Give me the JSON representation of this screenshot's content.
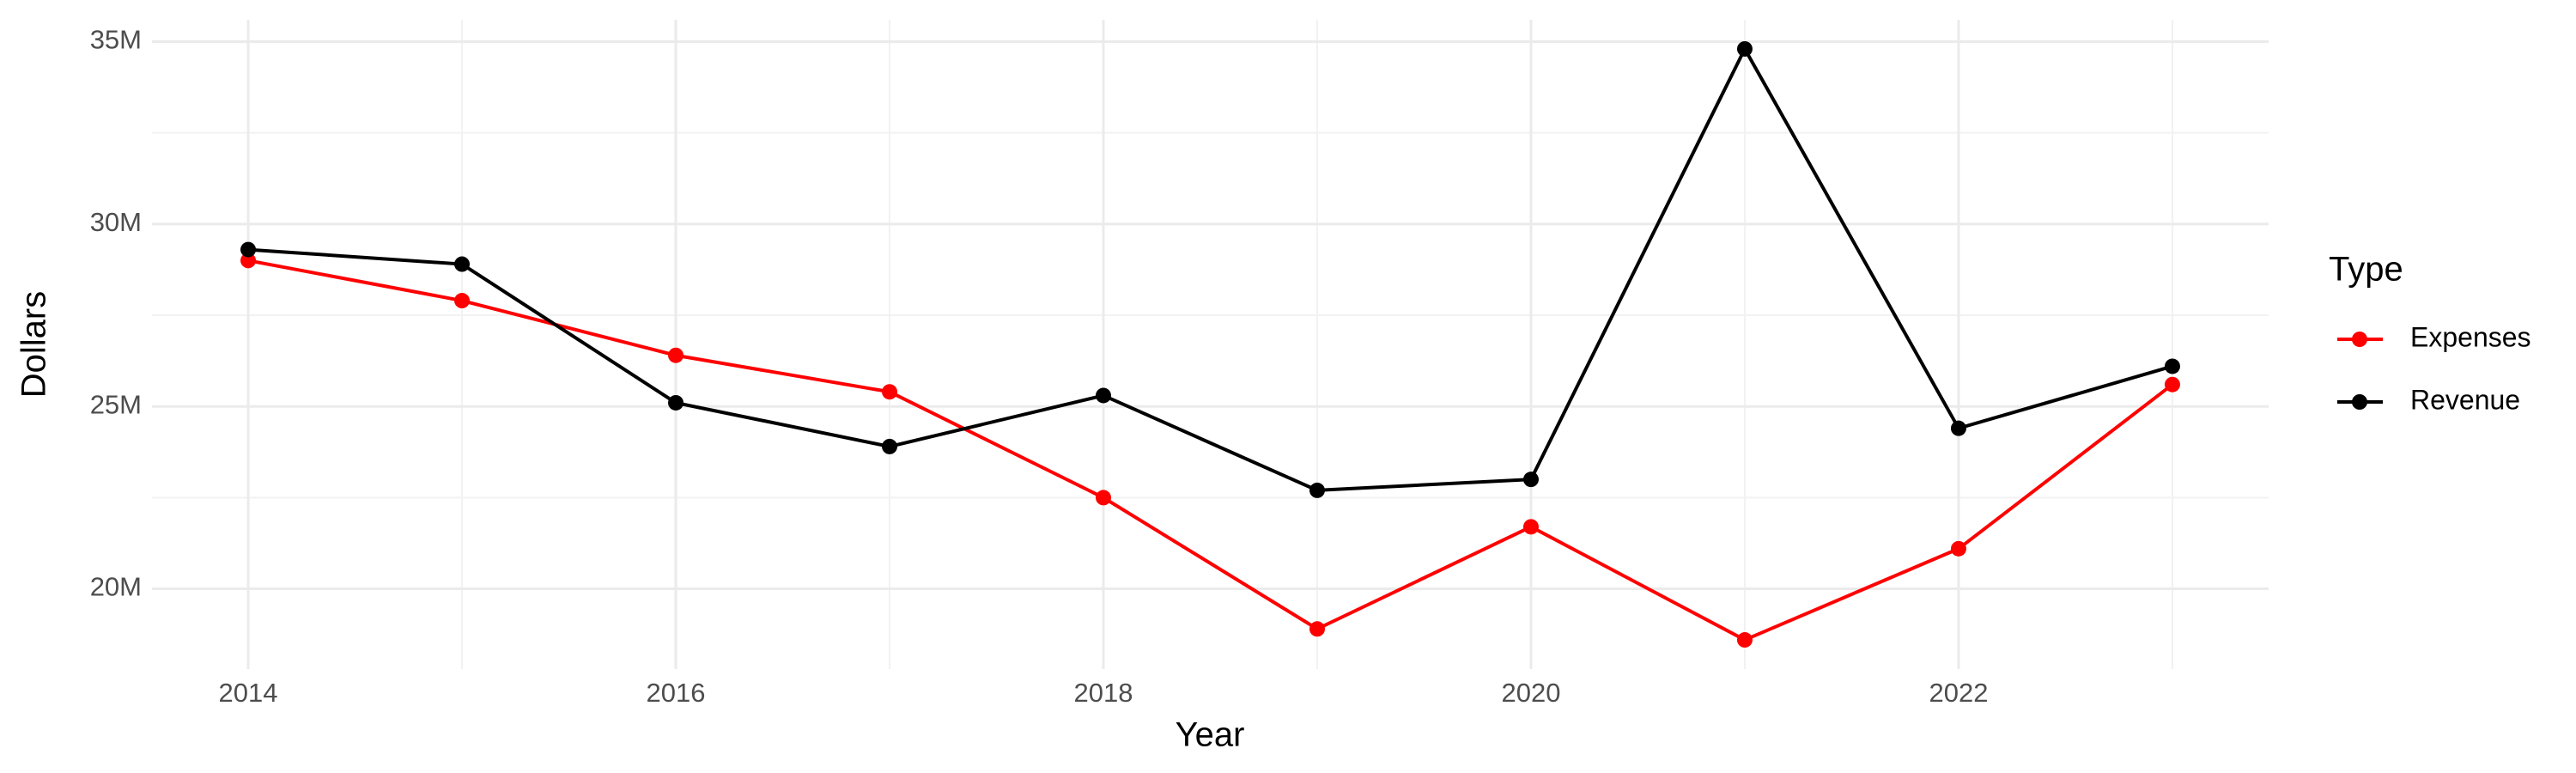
{
  "chart_data": {
    "type": "line",
    "x_label": "Year",
    "y_label": "Dollars",
    "legend_title": "Type",
    "x": [
      2014,
      2015,
      2016,
      2017,
      2018,
      2019,
      2020,
      2021,
      2022,
      2023
    ],
    "series": [
      {
        "name": "Expenses",
        "color": "#ff0000",
        "values": [
          29000000,
          27900000,
          26400000,
          25400000,
          22500000,
          18900000,
          21700000,
          18600000,
          21100000,
          25600000
        ]
      },
      {
        "name": "Revenue",
        "color": "#000000",
        "values": [
          29300000,
          28900000,
          25100000,
          23900000,
          25300000,
          22700000,
          23000000,
          34800000,
          24400000,
          26100000
        ]
      }
    ],
    "xlim": [
      2013.55,
      2023.45
    ],
    "ylim": [
      17800000,
      35600000
    ],
    "xticks": [
      2014,
      2016,
      2018,
      2020,
      2022
    ],
    "yticks": [
      {
        "value": 20000000,
        "label": "20M"
      },
      {
        "value": 25000000,
        "label": "25M"
      },
      {
        "value": 30000000,
        "label": "30M"
      },
      {
        "value": 35000000,
        "label": "35M"
      }
    ],
    "minor_xticks": [
      2015,
      2017,
      2019,
      2021,
      2023
    ],
    "minor_yticks": [
      22500000,
      27500000,
      32500000
    ],
    "grid": true
  }
}
